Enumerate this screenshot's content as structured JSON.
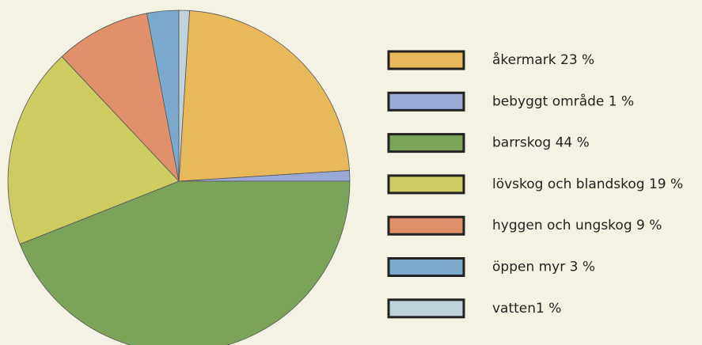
{
  "chart_data": {
    "type": "pie",
    "categories": [
      "åkermark 23 %",
      "bebyggt område 1 %",
      "barrskog 44 %",
      "lövskog och blandskog 19 %",
      "hyggen och ungskog 9 %",
      "öppen myr 3 %",
      "vatten1 %"
    ],
    "values": [
      23,
      1,
      44,
      19,
      9,
      3,
      1
    ],
    "colors": [
      "#e8b95b",
      "#9ba7d6",
      "#7ba45a",
      "#cdcc60",
      "#e0916b",
      "#7aa9cd",
      "#bfd2d9"
    ]
  }
}
